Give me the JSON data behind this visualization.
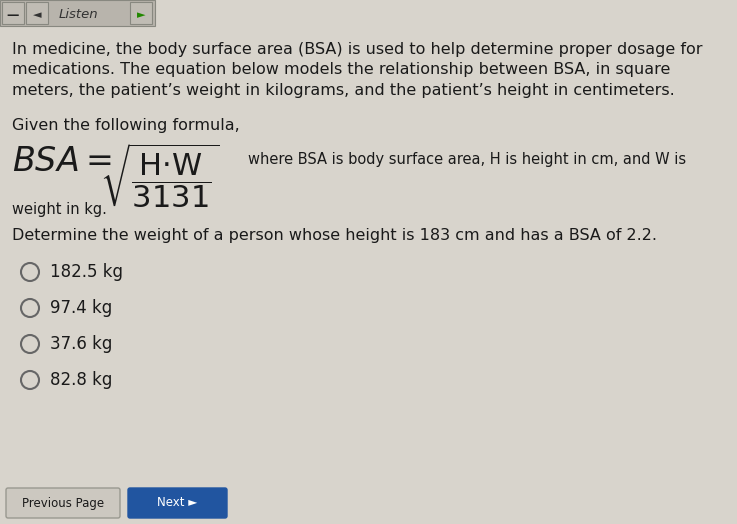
{
  "bg_color": "#d8d4cc",
  "header_bar_color": "#c8c4bc",
  "intro_text": "In medicine, the body surface area (BSA) is used to help determine proper dosage for\nmedications. The equation below models the relationship between BSA, in square\nmeters, the patient’s weight in kilograms, and the patient’s height in centimeters.",
  "given_text": "Given the following formula,",
  "formula_description": "where BSA is body surface area, H is height in cm, and W is",
  "formula_description2": "weight in kg.",
  "question_text": "Determine the weight of a person whose height is 183 cm and has a BSA of 2.2.",
  "choices": [
    "182.5 kg",
    "97.4 kg",
    "37.6 kg",
    "82.8 kg"
  ],
  "button_text_prev": "Previous Page",
  "button_color": "#2155a0",
  "text_color": "#1a1a1a",
  "font_size_intro": 11.5,
  "font_size_choices": 12,
  "font_size_question": 11.5,
  "font_size_given": 11.5
}
